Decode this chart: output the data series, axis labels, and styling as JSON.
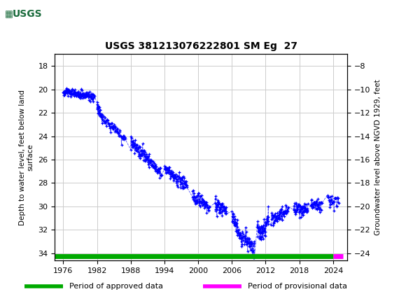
{
  "title": "USGS 381213076222801 SM Eg  27",
  "ylabel_left": "Depth to water level, feet below land\nsurface",
  "ylabel_right": "Groundwater level above NGVD 1929, feet",
  "header_color": "#1a6b3c",
  "background_color": "#ffffff",
  "grid_color": "#cccccc",
  "data_color": "#0000ff",
  "approved_color": "#00aa00",
  "provisional_color": "#ff00ff",
  "left_ylim": [
    34.6,
    17.0
  ],
  "right_ylim": [
    -24.6,
    -7.0
  ],
  "left_yticks": [
    18,
    20,
    22,
    24,
    26,
    28,
    30,
    32,
    34
  ],
  "right_yticks": [
    -8,
    -10,
    -12,
    -14,
    -16,
    -18,
    -20,
    -22,
    -24
  ],
  "xticks": [
    1976,
    1982,
    1988,
    1994,
    2000,
    2006,
    2012,
    2018,
    2024
  ],
  "xlim": [
    1974.5,
    2026.5
  ],
  "legend_approved": "Period of approved data",
  "legend_provisional": "Period of provisional data"
}
